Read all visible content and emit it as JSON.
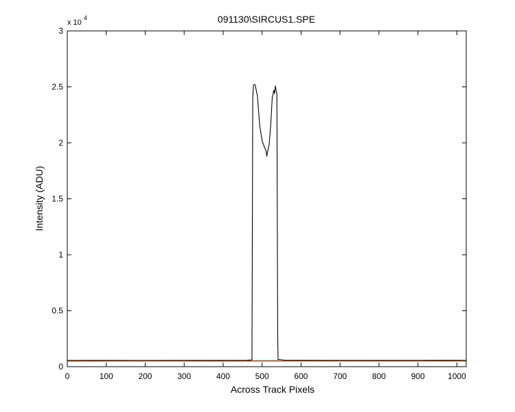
{
  "chart_data": {
    "type": "line",
    "title": "091130\\SIRCUS1.SPE",
    "xlabel": "Across Track Pixels",
    "ylabel": "Intensity (ADU)",
    "xlim": [
      0,
      1024
    ],
    "ylim": [
      0,
      30000
    ],
    "grid": false,
    "x_ticks": [
      0,
      100,
      200,
      300,
      400,
      500,
      600,
      700,
      800,
      900,
      1000
    ],
    "x_tick_labels": [
      "0",
      "100",
      "200",
      "300",
      "400",
      "500",
      "600",
      "700",
      "800",
      "900",
      "1000"
    ],
    "y_ticks": [
      0,
      5000,
      10000,
      15000,
      20000,
      25000,
      30000
    ],
    "y_tick_labels": [
      "0",
      "0.5",
      "1",
      "1.5",
      "2",
      "2.5",
      "3"
    ],
    "y_multiplier": {
      "base": "x 10",
      "exponent": "4"
    },
    "series": [
      {
        "color": "#000000",
        "points": [
          [
            0,
            560
          ],
          [
            100,
            565
          ],
          [
            200,
            560
          ],
          [
            300,
            562
          ],
          [
            400,
            565
          ],
          [
            460,
            570
          ],
          [
            474,
            600
          ],
          [
            476,
            24000
          ],
          [
            478,
            25200
          ],
          [
            482,
            25200
          ],
          [
            488,
            24200
          ],
          [
            494,
            21500
          ],
          [
            500,
            20200
          ],
          [
            506,
            19600
          ],
          [
            510,
            19300
          ],
          [
            512,
            18800
          ],
          [
            514,
            19200
          ],
          [
            518,
            19800
          ],
          [
            522,
            21500
          ],
          [
            526,
            24000
          ],
          [
            530,
            24700
          ],
          [
            532,
            24400
          ],
          [
            534,
            25100
          ],
          [
            538,
            24300
          ],
          [
            540,
            3000
          ],
          [
            541,
            650
          ],
          [
            560,
            575
          ],
          [
            600,
            570
          ],
          [
            700,
            568
          ],
          [
            800,
            565
          ],
          [
            900,
            568
          ],
          [
            1000,
            570
          ],
          [
            1024,
            568
          ]
        ]
      },
      {
        "color": "#d08040",
        "points": [
          [
            0,
            480
          ],
          [
            200,
            485
          ],
          [
            400,
            482
          ],
          [
            600,
            484
          ],
          [
            800,
            483
          ],
          [
            1024,
            484
          ]
        ]
      },
      {
        "color": "#b03030",
        "points": [
          [
            0,
            520
          ],
          [
            200,
            522
          ],
          [
            400,
            519
          ],
          [
            600,
            521
          ],
          [
            800,
            520
          ],
          [
            1024,
            522
          ]
        ]
      },
      {
        "color": "#1050a0",
        "points": [
          [
            0,
            505
          ],
          [
            200,
            507
          ],
          [
            400,
            506
          ],
          [
            600,
            505
          ],
          [
            800,
            507
          ],
          [
            1024,
            506
          ]
        ]
      },
      {
        "color": "#20b0b0",
        "points": [
          [
            0,
            495
          ],
          [
            400,
            497
          ],
          [
            470,
            500
          ],
          [
            480,
            550
          ],
          [
            540,
            555
          ],
          [
            550,
            500
          ],
          [
            800,
            497
          ],
          [
            1024,
            496
          ]
        ]
      }
    ]
  }
}
